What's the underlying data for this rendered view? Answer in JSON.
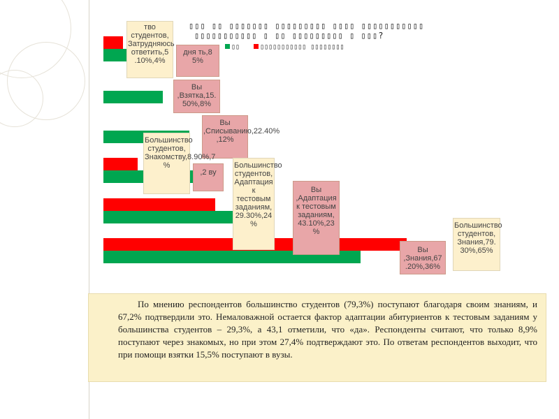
{
  "chart_data": {
    "type": "bar",
    "orientation": "horizontal",
    "title": "▯▯▯ ▯▯ ▯▯▯▯▯▯▯ ▯▯▯▯▯▯▯▯▯ ▯▯▯▯ ▯▯▯▯▯▯▯▯▯▯▯",
    "title_line2": "▯▯▯▯▯▯▯▯▯▯▯ ▯ ▯▯ ▯▯▯▯▯▯▯▯▯ ▯ ▯▯▯?",
    "legend": [
      "▯▯",
      "▯▯▯▯▯▯▯▯▯▯▯ ▯▯▯▯▯▯▯▯"
    ],
    "categories": [
      "Затрудняюсь ответить",
      "Взятка",
      "Списыванию",
      "Знакомству",
      "Адаптация к тестовым заданиям",
      "Знания"
    ],
    "series": [
      {
        "name": "Вы",
        "color": "#00a650",
        "values": [
          8.5,
          15.5,
          22.4,
          27.4,
          43.1,
          67.2
        ]
      },
      {
        "name": "Большинство студентов",
        "color": "#ff0000",
        "values": [
          5.1,
          0,
          0,
          8.9,
          29.3,
          79.3
        ]
      }
    ],
    "xlim": [
      0,
      100
    ],
    "data_labels": [
      "тво студентов, Затрудняюсь ответить,5 .10%,4%",
      "дня ть,8 5%",
      "Вы ,Взятка,15. 50%,8%",
      "Вы ,Списыванию,22.40% ,12%",
      "Большинство студентов, Знакомству,8.90%,7 %",
      ",2 ву",
      "Большинство студентов, Адаптация к тестовым заданиям, 29.30%,24 %",
      "Вы ,Адаптация к тестовым заданиям, 43.10%,23 %",
      "Вы ,Знания,67 .20%,36%",
      "Большинство студентов, Знания,79. 30%,65%"
    ]
  },
  "text": "По мнению респондентов большинство студентов (79,3%) поступают благодаря своим знаниям, и 67,2% подтвердили это. Немаловажной остается фактор адаптации абитуриентов к тестовым заданиям у большинства студентов – 29,3%, а 43,1 отметили, что «да». Респонденты считают, что только 8,9% поступают через знакомых, но при этом 27,4% подтверждают это. По ответам респондентов выходит, что при помощи взятки 15,5% поступают в вузы."
}
